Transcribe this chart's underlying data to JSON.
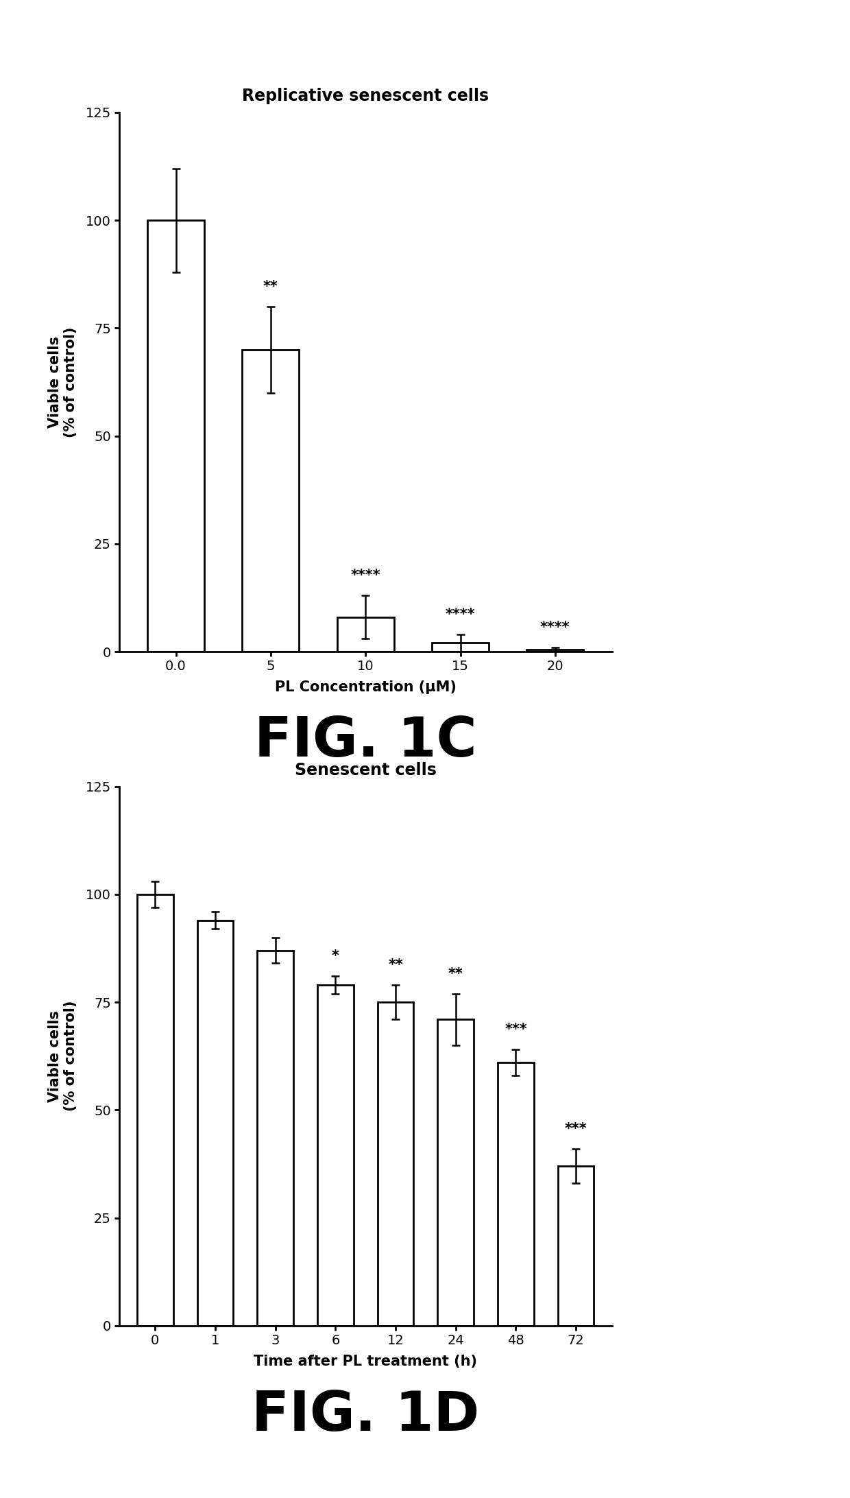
{
  "fig1c": {
    "title": "Replicative senescent cells",
    "xlabel": "PL Concentration (μM)",
    "ylabel": "Viable cells\n(% of control)",
    "categories": [
      "0.0",
      "5",
      "10",
      "15",
      "20"
    ],
    "values": [
      100,
      70,
      8,
      2,
      0.5
    ],
    "errors": [
      12,
      10,
      5,
      2,
      0.5
    ],
    "significance": [
      "",
      "**",
      "****",
      "****",
      "****"
    ],
    "ylim": [
      0,
      125
    ],
    "yticks": [
      0,
      25,
      50,
      75,
      100,
      125
    ],
    "fig_label": "FIG. 1C"
  },
  "fig1d": {
    "title": "Senescent cells",
    "xlabel": "Time after PL treatment (h)",
    "ylabel": "Viable cells\n(% of control)",
    "categories": [
      "0",
      "1",
      "3",
      "6",
      "12",
      "24",
      "48",
      "72"
    ],
    "values": [
      100,
      94,
      87,
      79,
      75,
      71,
      61,
      37
    ],
    "errors": [
      3,
      2,
      3,
      2,
      4,
      6,
      3,
      4
    ],
    "significance": [
      "",
      "",
      "",
      "*",
      "**",
      "**",
      "***",
      "***"
    ],
    "ylim": [
      0,
      125
    ],
    "yticks": [
      0,
      25,
      50,
      75,
      100,
      125
    ],
    "fig_label": "FIG. 1D"
  },
  "bar_color": "white",
  "bar_edgecolor": "black",
  "bar_linewidth": 2.0,
  "capsize": 4,
  "errorbar_color": "black",
  "errorbar_linewidth": 1.8,
  "sig_fontsize": 15,
  "title_fontsize": 17,
  "label_fontsize": 15,
  "tick_fontsize": 14,
  "figlabel_fontsize": 58,
  "background_color": "white"
}
